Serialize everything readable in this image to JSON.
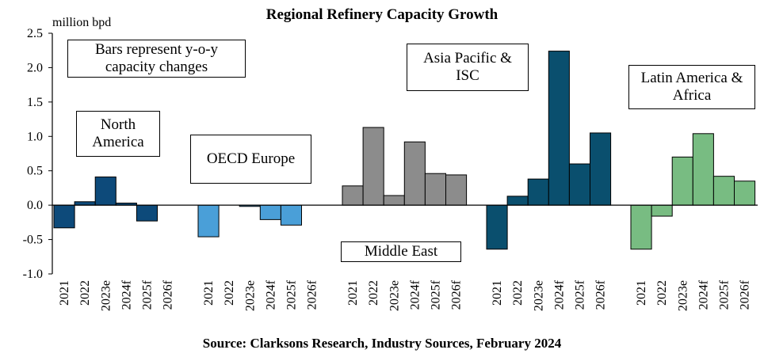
{
  "chart_data": {
    "type": "bar",
    "title": "Regional Refinery Capacity Growth",
    "ylabel": "million bpd",
    "ylim": [
      -1.0,
      2.5
    ],
    "yticks": [
      "2.5",
      "2.0",
      "1.5",
      "1.0",
      "0.5",
      "0.0",
      "-0.5",
      "-1.0"
    ],
    "note": "Bars represent y-o-y capacity changes",
    "source": "Source: Clarksons Research, Industry Sources, February 2024",
    "categories": [
      "2021",
      "2022",
      "2023e",
      "2024f",
      "2025f",
      "2026f"
    ],
    "series": [
      {
        "name": "North America",
        "color": "#0d4a7a",
        "values": [
          -0.33,
          0.05,
          0.41,
          0.03,
          -0.23,
          0.0
        ]
      },
      {
        "name": "OECD Europe",
        "color": "#4a9fd8",
        "values": [
          -0.46,
          0.0,
          -0.01,
          -0.21,
          -0.29,
          0.0
        ]
      },
      {
        "name": "Middle East",
        "color": "#8c8c8c",
        "values": [
          0.28,
          1.13,
          0.14,
          0.92,
          0.46,
          0.44
        ]
      },
      {
        "name": "Asia Pacific & ISC",
        "color": "#0a4f6e",
        "values": [
          -0.64,
          0.13,
          0.38,
          2.24,
          0.6,
          1.05
        ]
      },
      {
        "name": "Latin America & Africa",
        "color": "#78bc82",
        "values": [
          -0.64,
          -0.16,
          0.7,
          1.04,
          0.42,
          0.35
        ]
      }
    ],
    "region_labels": {
      "north_america_1": "North",
      "north_america_2": "America",
      "oecd_europe": "OECD Europe",
      "middle_east": "Middle East",
      "asia_pacific_1": "Asia Pacific &",
      "asia_pacific_2": "ISC",
      "latam_africa_1": "Latin America &",
      "latam_africa_2": "Africa",
      "note_1": "Bars represent y-o-y",
      "note_2": "capacity changes"
    }
  }
}
